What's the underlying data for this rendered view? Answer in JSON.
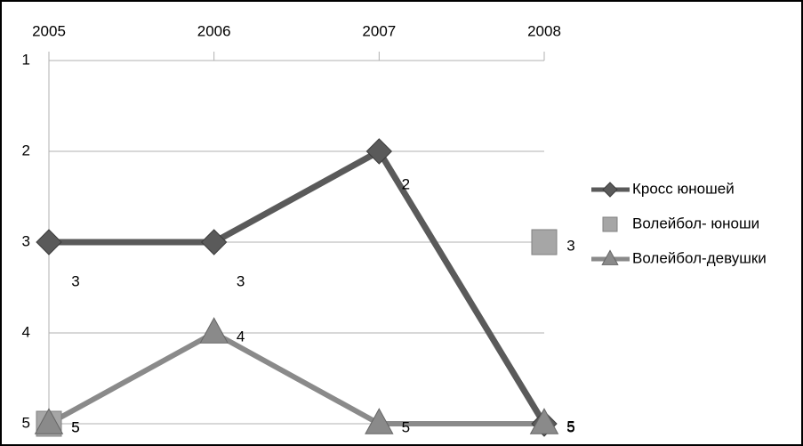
{
  "chart_data": {
    "type": "line",
    "categories": [
      "2005",
      "2006",
      "2007",
      "2008"
    ],
    "series": [
      {
        "name": "Кросс юношей",
        "color": "#5a5a5a",
        "marker": "diamond",
        "line": true,
        "values": [
          3,
          3,
          2,
          5
        ]
      },
      {
        "name": "Волейбол- юноши",
        "color": "#a6a6a6",
        "marker": "square",
        "line": false,
        "values": [
          5,
          null,
          null,
          3
        ]
      },
      {
        "name": "Волейбол-девушки",
        "color": "#8a8a8a",
        "marker": "triangle",
        "line": true,
        "values": [
          5,
          4,
          5,
          5
        ]
      }
    ],
    "ylim": [
      1,
      5
    ],
    "yticks": [
      1,
      2,
      3,
      4,
      5
    ],
    "y_inverted": true,
    "grid": true,
    "legend": "right"
  }
}
